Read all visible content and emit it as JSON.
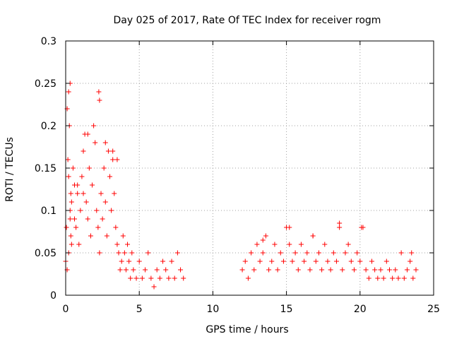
{
  "chart_data": {
    "type": "scatter",
    "title": "Day 025 of 2017, Rate Of TEC Index for receiver rogm",
    "xlabel": "GPS time / hours",
    "ylabel": "ROTI / TECUs",
    "xlim": [
      0,
      25
    ],
    "ylim": [
      0,
      0.3
    ],
    "xticks": [
      0,
      5,
      10,
      15,
      20,
      25
    ],
    "yticks": [
      0,
      0.05,
      0.1,
      0.15,
      0.2,
      0.25,
      0.3
    ],
    "xtick_labels": [
      "0",
      "5",
      "10",
      "15",
      "20",
      "25"
    ],
    "ytick_labels": [
      "0",
      "0.05",
      "0.1",
      "0.15",
      "0.2",
      "0.25",
      "0.3"
    ],
    "grid": true,
    "marker": "+",
    "color": "#ff0000",
    "series": [
      {
        "x": [
          0.0,
          0.05,
          0.1,
          0.15,
          0.2,
          0.25,
          0.3,
          0.35,
          0.4,
          0.1,
          0.2,
          0.3,
          0.2,
          0.3,
          0.35,
          0.4,
          0.5,
          0.6,
          0.7,
          0.8,
          0.9,
          1.0,
          1.1,
          1.2,
          1.3,
          1.4,
          1.5,
          1.6,
          1.7,
          1.8,
          1.9,
          2.0,
          2.1,
          2.2,
          2.3,
          2.4,
          2.5,
          2.6,
          2.7,
          2.8,
          2.9,
          3.0,
          3.1,
          3.2,
          3.3,
          3.4,
          3.5,
          3.6,
          3.7,
          3.8,
          3.9,
          4.0,
          4.1,
          4.2,
          4.3,
          4.4,
          4.5,
          4.6,
          4.8,
          5.0,
          5.2,
          5.4,
          5.6,
          5.8,
          6.0,
          6.2,
          6.4,
          6.6,
          6.8,
          7.0,
          7.2,
          7.4,
          7.6,
          7.8,
          8.0,
          2.25,
          2.3,
          1.5,
          2.7,
          1.2,
          3.5,
          3.2,
          0.8,
          0.6,
          12.0,
          12.2,
          12.4,
          12.6,
          12.8,
          13.0,
          13.2,
          13.4,
          13.6,
          13.8,
          14.0,
          14.2,
          14.4,
          14.6,
          14.8,
          15.0,
          15.2,
          15.4,
          15.6,
          15.8,
          16.0,
          16.2,
          16.4,
          16.6,
          16.8,
          17.0,
          17.2,
          17.4,
          17.6,
          17.8,
          18.0,
          18.2,
          18.4,
          18.6,
          18.8,
          19.0,
          19.2,
          19.4,
          19.6,
          19.8,
          20.0,
          20.2,
          20.4,
          20.6,
          20.8,
          21.0,
          21.2,
          21.4,
          21.6,
          21.8,
          22.0,
          22.2,
          22.4,
          22.6,
          22.8,
          23.0,
          23.2,
          23.4,
          23.6,
          23.8,
          15.2,
          18.6,
          20.1,
          13.4,
          16.8,
          23.5
        ],
        "y": [
          0.04,
          0.08,
          0.22,
          0.16,
          0.24,
          0.2,
          0.25,
          0.12,
          0.06,
          0.03,
          0.05,
          0.1,
          0.14,
          0.09,
          0.07,
          0.11,
          0.15,
          0.13,
          0.08,
          0.12,
          0.06,
          0.1,
          0.14,
          0.17,
          0.19,
          0.11,
          0.09,
          0.15,
          0.07,
          0.13,
          0.2,
          0.18,
          0.1,
          0.08,
          0.05,
          0.12,
          0.09,
          0.15,
          0.11,
          0.07,
          0.17,
          0.14,
          0.1,
          0.16,
          0.12,
          0.08,
          0.06,
          0.05,
          0.03,
          0.04,
          0.07,
          0.05,
          0.03,
          0.06,
          0.04,
          0.02,
          0.05,
          0.03,
          0.02,
          0.04,
          0.02,
          0.03,
          0.05,
          0.02,
          0.01,
          0.03,
          0.02,
          0.04,
          0.03,
          0.02,
          0.04,
          0.02,
          0.05,
          0.03,
          0.02,
          0.24,
          0.23,
          0.19,
          0.18,
          0.12,
          0.16,
          0.17,
          0.13,
          0.09,
          0.03,
          0.04,
          0.02,
          0.05,
          0.03,
          0.06,
          0.04,
          0.05,
          0.07,
          0.03,
          0.04,
          0.06,
          0.03,
          0.05,
          0.04,
          0.08,
          0.06,
          0.04,
          0.05,
          0.03,
          0.06,
          0.04,
          0.05,
          0.03,
          0.07,
          0.04,
          0.05,
          0.03,
          0.06,
          0.04,
          0.03,
          0.05,
          0.04,
          0.08,
          0.03,
          0.05,
          0.06,
          0.04,
          0.03,
          0.05,
          0.04,
          0.08,
          0.03,
          0.02,
          0.04,
          0.03,
          0.02,
          0.03,
          0.02,
          0.04,
          0.03,
          0.02,
          0.03,
          0.02,
          0.05,
          0.02,
          0.03,
          0.04,
          0.02,
          0.03,
          0.08,
          0.085,
          0.08,
          0.065,
          0.07,
          0.05
        ]
      }
    ]
  }
}
